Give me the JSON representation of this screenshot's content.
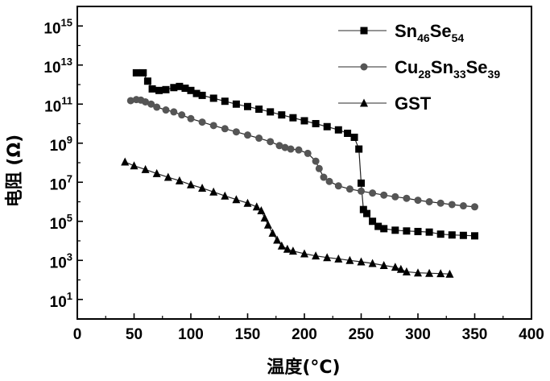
{
  "chart_data": {
    "type": "scatter",
    "xlabel": "温度(°C)",
    "ylabel": "电阻 (Ω)",
    "xlim": [
      0,
      400
    ],
    "ylim": [
      1,
      1e+16
    ],
    "yscale": "log",
    "x_ticks": [
      "0",
      "50",
      "100",
      "150",
      "200",
      "250",
      "300",
      "350",
      "400"
    ],
    "y_ticks": [
      {
        "base": "10",
        "exp": "1",
        "value": 1
      },
      {
        "base": "10",
        "exp": "3",
        "value": 3
      },
      {
        "base": "10",
        "exp": "5",
        "value": 5
      },
      {
        "base": "10",
        "exp": "7",
        "value": 7
      },
      {
        "base": "10",
        "exp": "9",
        "value": 9
      },
      {
        "base": "10",
        "exp": "11",
        "value": 11
      },
      {
        "base": "10",
        "exp": "13",
        "value": 13
      },
      {
        "base": "10",
        "exp": "15",
        "value": 15
      }
    ],
    "legend_position": "top-right",
    "series": [
      {
        "name": "Sn46Se54",
        "legend": {
          "parts": [
            [
              "Sn",
              ""
            ],
            [
              "46",
              "sub"
            ],
            [
              "Se",
              ""
            ],
            [
              "54",
              "sub"
            ]
          ]
        },
        "marker": "square",
        "color": "#000000",
        "points": [
          [
            52,
            4000000000000.0
          ],
          [
            58,
            4000000000000.0
          ],
          [
            62,
            1500000000000.0
          ],
          [
            66,
            600000000000.0
          ],
          [
            72,
            500000000000.0
          ],
          [
            78,
            550000000000.0
          ],
          [
            85,
            700000000000.0
          ],
          [
            90,
            800000000000.0
          ],
          [
            95,
            650000000000.0
          ],
          [
            100,
            500000000000.0
          ],
          [
            105,
            350000000000.0
          ],
          [
            110,
            280000000000.0
          ],
          [
            120,
            200000000000.0
          ],
          [
            130,
            140000000000.0
          ],
          [
            140,
            100000000000.0
          ],
          [
            150,
            75000000000.0
          ],
          [
            160,
            55000000000.0
          ],
          [
            170,
            40000000000.0
          ],
          [
            180,
            28000000000.0
          ],
          [
            190,
            20000000000.0
          ],
          [
            200,
            14000000000.0
          ],
          [
            210,
            10000000000.0
          ],
          [
            220,
            7000000000.0
          ],
          [
            230,
            4800000000.0
          ],
          [
            238,
            3200000000.0
          ],
          [
            244,
            2000000000.0
          ],
          [
            248,
            500000000.0
          ],
          [
            250,
            9000000.0
          ],
          [
            252,
            400000.0
          ],
          [
            255,
            250000.0
          ],
          [
            260,
            100000.0
          ],
          [
            265,
            55000.0
          ],
          [
            270,
            42000.0
          ],
          [
            280,
            35000.0
          ],
          [
            290,
            32000.0
          ],
          [
            300,
            30000.0
          ],
          [
            310,
            28000.0
          ],
          [
            320,
            22000.0
          ],
          [
            330,
            20000.0
          ],
          [
            340,
            19000.0
          ],
          [
            350,
            18000.0
          ]
        ]
      },
      {
        "name": "Cu28Sn33Se39",
        "legend": {
          "parts": [
            [
              "Cu",
              ""
            ],
            [
              "28",
              "sub"
            ],
            [
              "Sn",
              ""
            ],
            [
              "33",
              "sub"
            ],
            [
              "Se",
              ""
            ],
            [
              "39",
              "sub"
            ]
          ]
        },
        "marker": "circle",
        "color": "#555555",
        "points": [
          [
            47,
            150000000000.0
          ],
          [
            52,
            170000000000.0
          ],
          [
            56,
            160000000000.0
          ],
          [
            60,
            130000000000.0
          ],
          [
            65,
            100000000000.0
          ],
          [
            70,
            70000000000.0
          ],
          [
            78,
            50000000000.0
          ],
          [
            85,
            40000000000.0
          ],
          [
            92,
            28000000000.0
          ],
          [
            100,
            18000000000.0
          ],
          [
            110,
            12000000000.0
          ],
          [
            120,
            8000000000.0
          ],
          [
            130,
            5500000000.0
          ],
          [
            140,
            3800000000.0
          ],
          [
            150,
            2600000000.0
          ],
          [
            160,
            1800000000.0
          ],
          [
            170,
            1200000000.0
          ],
          [
            178,
            750000000.0
          ],
          [
            183,
            600000000.0
          ],
          [
            188,
            500000000.0
          ],
          [
            195,
            450000000.0
          ],
          [
            203,
            300000000.0
          ],
          [
            210,
            120000000.0
          ],
          [
            213,
            50000000.0
          ],
          [
            217,
            18000000.0
          ],
          [
            222,
            11000000.0
          ],
          [
            230,
            6500000.0
          ],
          [
            240,
            4500000.0
          ],
          [
            250,
            3500000.0
          ],
          [
            260,
            2800000.0
          ],
          [
            270,
            2200000.0
          ],
          [
            280,
            1800000.0
          ],
          [
            290,
            1500000.0
          ],
          [
            300,
            1200000.0
          ],
          [
            310,
            1000000.0
          ],
          [
            320,
            850000.0
          ],
          [
            330,
            720000.0
          ],
          [
            340,
            620000.0
          ],
          [
            350,
            550000.0
          ]
        ]
      },
      {
        "name": "GST",
        "legend": {
          "parts": [
            [
              "GST",
              ""
            ]
          ]
        },
        "marker": "triangle",
        "color": "#000000",
        "points": [
          [
            42,
            110000000.0
          ],
          [
            50,
            70000000.0
          ],
          [
            60,
            45000000.0
          ],
          [
            70,
            28000000.0
          ],
          [
            80,
            18000000.0
          ],
          [
            90,
            12000000.0
          ],
          [
            100,
            7500000.0
          ],
          [
            110,
            5000000.0
          ],
          [
            120,
            3200000.0
          ],
          [
            130,
            2000000.0
          ],
          [
            140,
            1300000.0
          ],
          [
            150,
            850000.0
          ],
          [
            158,
            550000.0
          ],
          [
            162,
            350000.0
          ],
          [
            165,
            150000.0
          ],
          [
            168,
            65000.0
          ],
          [
            172,
            25000.0
          ],
          [
            176,
            11000.0
          ],
          [
            180,
            5500.0
          ],
          [
            185,
            3800.0
          ],
          [
            190,
            3000.0
          ],
          [
            200,
            2200.0
          ],
          [
            210,
            1700.0
          ],
          [
            220,
            1400.0
          ],
          [
            230,
            1200.0
          ],
          [
            240,
            1000.0
          ],
          [
            250,
            850.0
          ],
          [
            260,
            700.0
          ],
          [
            270,
            550.0
          ],
          [
            280,
            450.0
          ],
          [
            285,
            350.0
          ],
          [
            290,
            260.0
          ],
          [
            300,
            230.0
          ],
          [
            310,
            220.0
          ],
          [
            320,
            210.0
          ],
          [
            328,
            200.0
          ]
        ]
      }
    ]
  }
}
